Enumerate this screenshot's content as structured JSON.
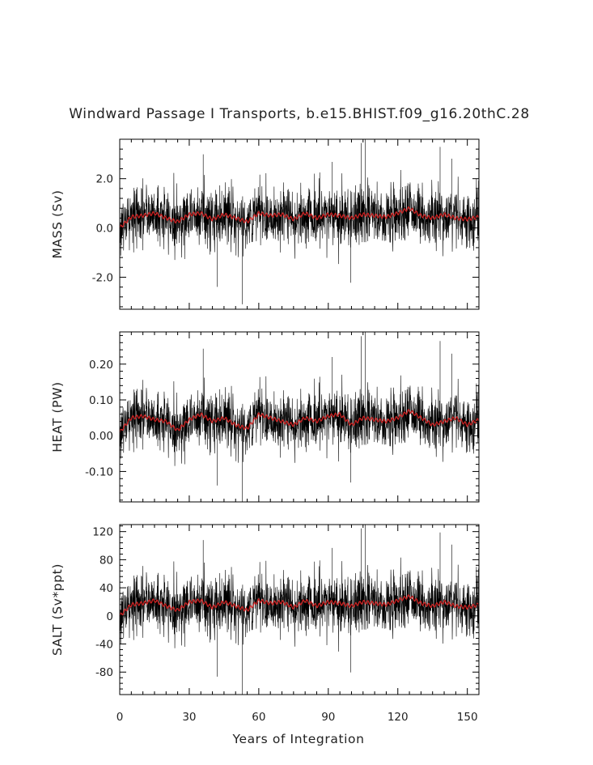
{
  "title": "Windward Passage I Transports, b.e15.BHIST.f09_g16.20thC.28",
  "xlabel": "Years of Integration",
  "colors": {
    "raw": "#000000",
    "smooth": "#cc2222"
  },
  "chart_data": [
    {
      "type": "line",
      "name": "mass",
      "ylabel": "MASS (Sv)",
      "xlim": [
        0,
        155
      ],
      "ylim": [
        -3.3,
        3.6
      ],
      "xticks": [
        0,
        30,
        60,
        90,
        120,
        150
      ],
      "xtick_labels": [
        "0",
        "30",
        "60",
        "90",
        "120",
        "150"
      ],
      "yticks": [
        -2.0,
        0.0,
        2.0
      ],
      "ytick_labels": [
        "-2.0",
        "0.0",
        "2.0"
      ],
      "raw_series": {
        "mean": 0.45,
        "std": 0.6,
        "min": -3.1,
        "max": 3.6
      },
      "smooth_series": {
        "x": [
          0,
          5,
          10,
          15,
          20,
          25,
          30,
          35,
          40,
          45,
          50,
          55,
          60,
          65,
          70,
          75,
          80,
          85,
          90,
          95,
          100,
          105,
          110,
          115,
          120,
          125,
          130,
          135,
          140,
          145,
          150,
          155
        ],
        "y": [
          0.0,
          0.45,
          0.5,
          0.6,
          0.4,
          0.25,
          0.55,
          0.6,
          0.35,
          0.55,
          0.4,
          0.25,
          0.6,
          0.5,
          0.55,
          0.35,
          0.6,
          0.4,
          0.55,
          0.5,
          0.4,
          0.55,
          0.5,
          0.45,
          0.6,
          0.8,
          0.5,
          0.4,
          0.55,
          0.4,
          0.35,
          0.45
        ]
      }
    },
    {
      "type": "line",
      "name": "heat",
      "ylabel": "HEAT (PW)",
      "xlim": [
        0,
        155
      ],
      "ylim": [
        -0.185,
        0.29
      ],
      "xticks": [
        0,
        30,
        60,
        90,
        120,
        150
      ],
      "xtick_labels": [
        "0",
        "30",
        "60",
        "90",
        "120",
        "150"
      ],
      "yticks": [
        -0.1,
        0.0,
        0.1,
        0.2
      ],
      "ytick_labels": [
        "-0.10",
        "0.00",
        "0.10",
        "0.20"
      ],
      "raw_series": {
        "mean": 0.045,
        "std": 0.04,
        "min": -0.185,
        "max": 0.29
      },
      "smooth_series": {
        "x": [
          0,
          5,
          10,
          15,
          20,
          25,
          30,
          35,
          40,
          45,
          50,
          55,
          60,
          65,
          70,
          75,
          80,
          85,
          90,
          95,
          100,
          105,
          110,
          115,
          120,
          125,
          130,
          135,
          140,
          145,
          150,
          155
        ],
        "y": [
          0.01,
          0.05,
          0.055,
          0.045,
          0.04,
          0.015,
          0.045,
          0.06,
          0.04,
          0.05,
          0.03,
          0.02,
          0.06,
          0.05,
          0.04,
          0.03,
          0.05,
          0.04,
          0.055,
          0.06,
          0.03,
          0.05,
          0.045,
          0.04,
          0.05,
          0.07,
          0.05,
          0.03,
          0.04,
          0.05,
          0.03,
          0.045
        ]
      }
    },
    {
      "type": "line",
      "name": "salt",
      "ylabel": "SALT (Sv*ppt)",
      "xlim": [
        0,
        155
      ],
      "ylim": [
        -112,
        130
      ],
      "xticks": [
        0,
        30,
        60,
        90,
        120,
        150
      ],
      "xtick_labels": [
        "0",
        "30",
        "60",
        "90",
        "120",
        "150"
      ],
      "yticks": [
        -80,
        -40,
        0,
        40,
        80,
        120
      ],
      "ytick_labels": [
        "-80",
        "-40",
        "0",
        "40",
        "80",
        "120"
      ],
      "raw_series": {
        "mean": 16,
        "std": 21,
        "min": -112,
        "max": 130
      },
      "smooth_series": {
        "x": [
          0,
          5,
          10,
          15,
          20,
          25,
          30,
          35,
          40,
          45,
          50,
          55,
          60,
          65,
          70,
          75,
          80,
          85,
          90,
          95,
          100,
          105,
          110,
          115,
          120,
          125,
          130,
          135,
          140,
          145,
          150,
          155
        ],
        "y": [
          0,
          16,
          18,
          22,
          14,
          8,
          20,
          22,
          12,
          20,
          14,
          8,
          22,
          18,
          20,
          12,
          22,
          14,
          20,
          18,
          14,
          20,
          18,
          16,
          22,
          28,
          18,
          14,
          20,
          14,
          12,
          16
        ]
      }
    }
  ]
}
